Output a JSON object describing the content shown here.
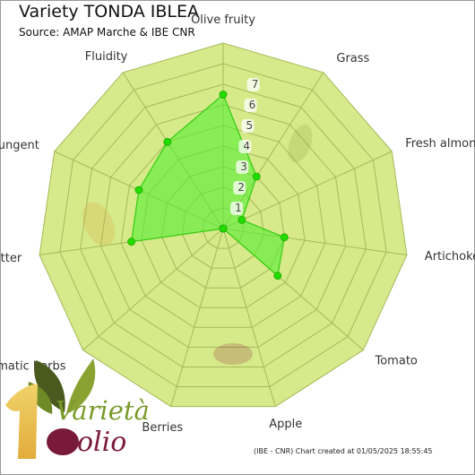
{
  "header": {
    "title": "Variety TONDA IBLEA",
    "subtitle": "Source: AMAP Marche & IBE CNR"
  },
  "footer": {
    "note": "(IBE - CNR) Chart created at 01/05/2025 18:55:45"
  },
  "logo": {
    "text_top": "Varietà",
    "text_bottom": "olio"
  },
  "colors": {
    "polygon_fill": "#d7e98a",
    "grid_line": "#a4ba5a",
    "series_fill": "#55ee33",
    "series_stroke": "#33cc11",
    "marker": "#22dd00"
  },
  "chart_data": {
    "type": "radar",
    "categories": [
      "Olive fruity",
      "Grass",
      "Fresh almond",
      "Artichoke",
      "Tomato",
      "Apple",
      "Berries",
      "Aromatic herbs",
      "Bitter",
      "Pungent",
      "Fluidity"
    ],
    "ticks": [
      "1",
      "2",
      "3",
      "4",
      "5",
      "6",
      "7"
    ],
    "rlim": [
      0,
      9
    ],
    "grid": true,
    "series": [
      {
        "values": [
          6.5,
          3.0,
          1.0,
          3.0,
          3.5,
          0,
          0,
          0,
          4.5,
          4.5,
          5.0
        ]
      }
    ]
  }
}
